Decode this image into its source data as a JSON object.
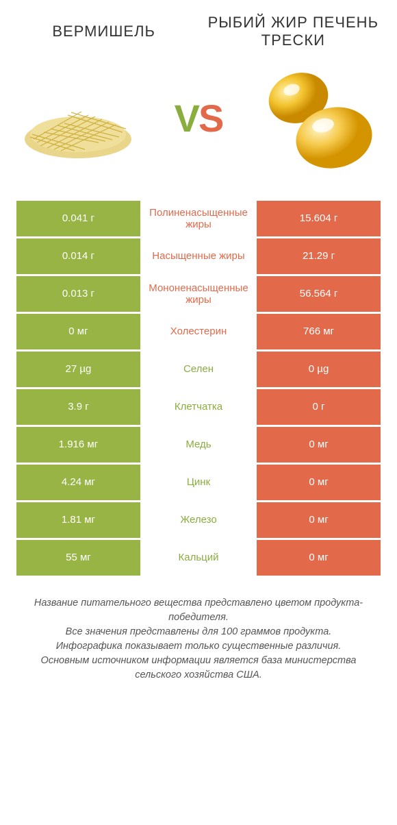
{
  "header": {
    "left_title": "ВЕРМИШЕЛЬ",
    "right_title": "РЫБИЙ ЖИР ПЕЧЕНЬ ТРЕСКИ",
    "vs_v": "V",
    "vs_s": "S"
  },
  "colors": {
    "left_bg": "#97b444",
    "right_bg": "#e26a4b",
    "left_text": "#8aad3f",
    "right_text": "#e26a4b",
    "footer_text": "#555555",
    "body_bg": "#ffffff"
  },
  "typography": {
    "title_fontsize": 22,
    "vs_fontsize": 56,
    "cell_fontsize": 15,
    "footer_fontsize": 14.5
  },
  "rows": [
    {
      "left": "0.041 г",
      "label": "Полиненасыщенные жиры",
      "right": "15.604 г",
      "winner": "right"
    },
    {
      "left": "0.014 г",
      "label": "Насыщенные жиры",
      "right": "21.29 г",
      "winner": "right"
    },
    {
      "left": "0.013 г",
      "label": "Мононенасыщенные жиры",
      "right": "56.564 г",
      "winner": "right"
    },
    {
      "left": "0 мг",
      "label": "Холестерин",
      "right": "766 мг",
      "winner": "right"
    },
    {
      "left": "27 µg",
      "label": "Селен",
      "right": "0 µg",
      "winner": "left"
    },
    {
      "left": "3.9 г",
      "label": "Клетчатка",
      "right": "0 г",
      "winner": "left"
    },
    {
      "left": "1.916 мг",
      "label": "Медь",
      "right": "0 мг",
      "winner": "left"
    },
    {
      "left": "4.24 мг",
      "label": "Цинк",
      "right": "0 мг",
      "winner": "left"
    },
    {
      "left": "1.81 мг",
      "label": "Железо",
      "right": "0 мг",
      "winner": "left"
    },
    {
      "left": "55 мг",
      "label": "Кальций",
      "right": "0 мг",
      "winner": "left"
    }
  ],
  "footer": {
    "line1": "Название питательного вещества представлено цветом продукта-победителя.",
    "line2": "Все значения представлены для 100 граммов продукта.",
    "line3": "Инфографика показывает только существенные различия.",
    "line4": "Основным источником информации является база министерства сельского хозяйства США."
  }
}
